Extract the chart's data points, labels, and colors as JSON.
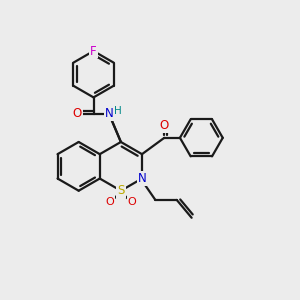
{
  "background_color": "#ececec",
  "line_color": "#1a1a1a",
  "bond_width": 1.6,
  "atom_colors": {
    "F": "#cc00cc",
    "O": "#dd0000",
    "N": "#0000cc",
    "S": "#bbaa00",
    "H": "#008888",
    "C": "#1a1a1a"
  },
  "font_size": 8.5
}
